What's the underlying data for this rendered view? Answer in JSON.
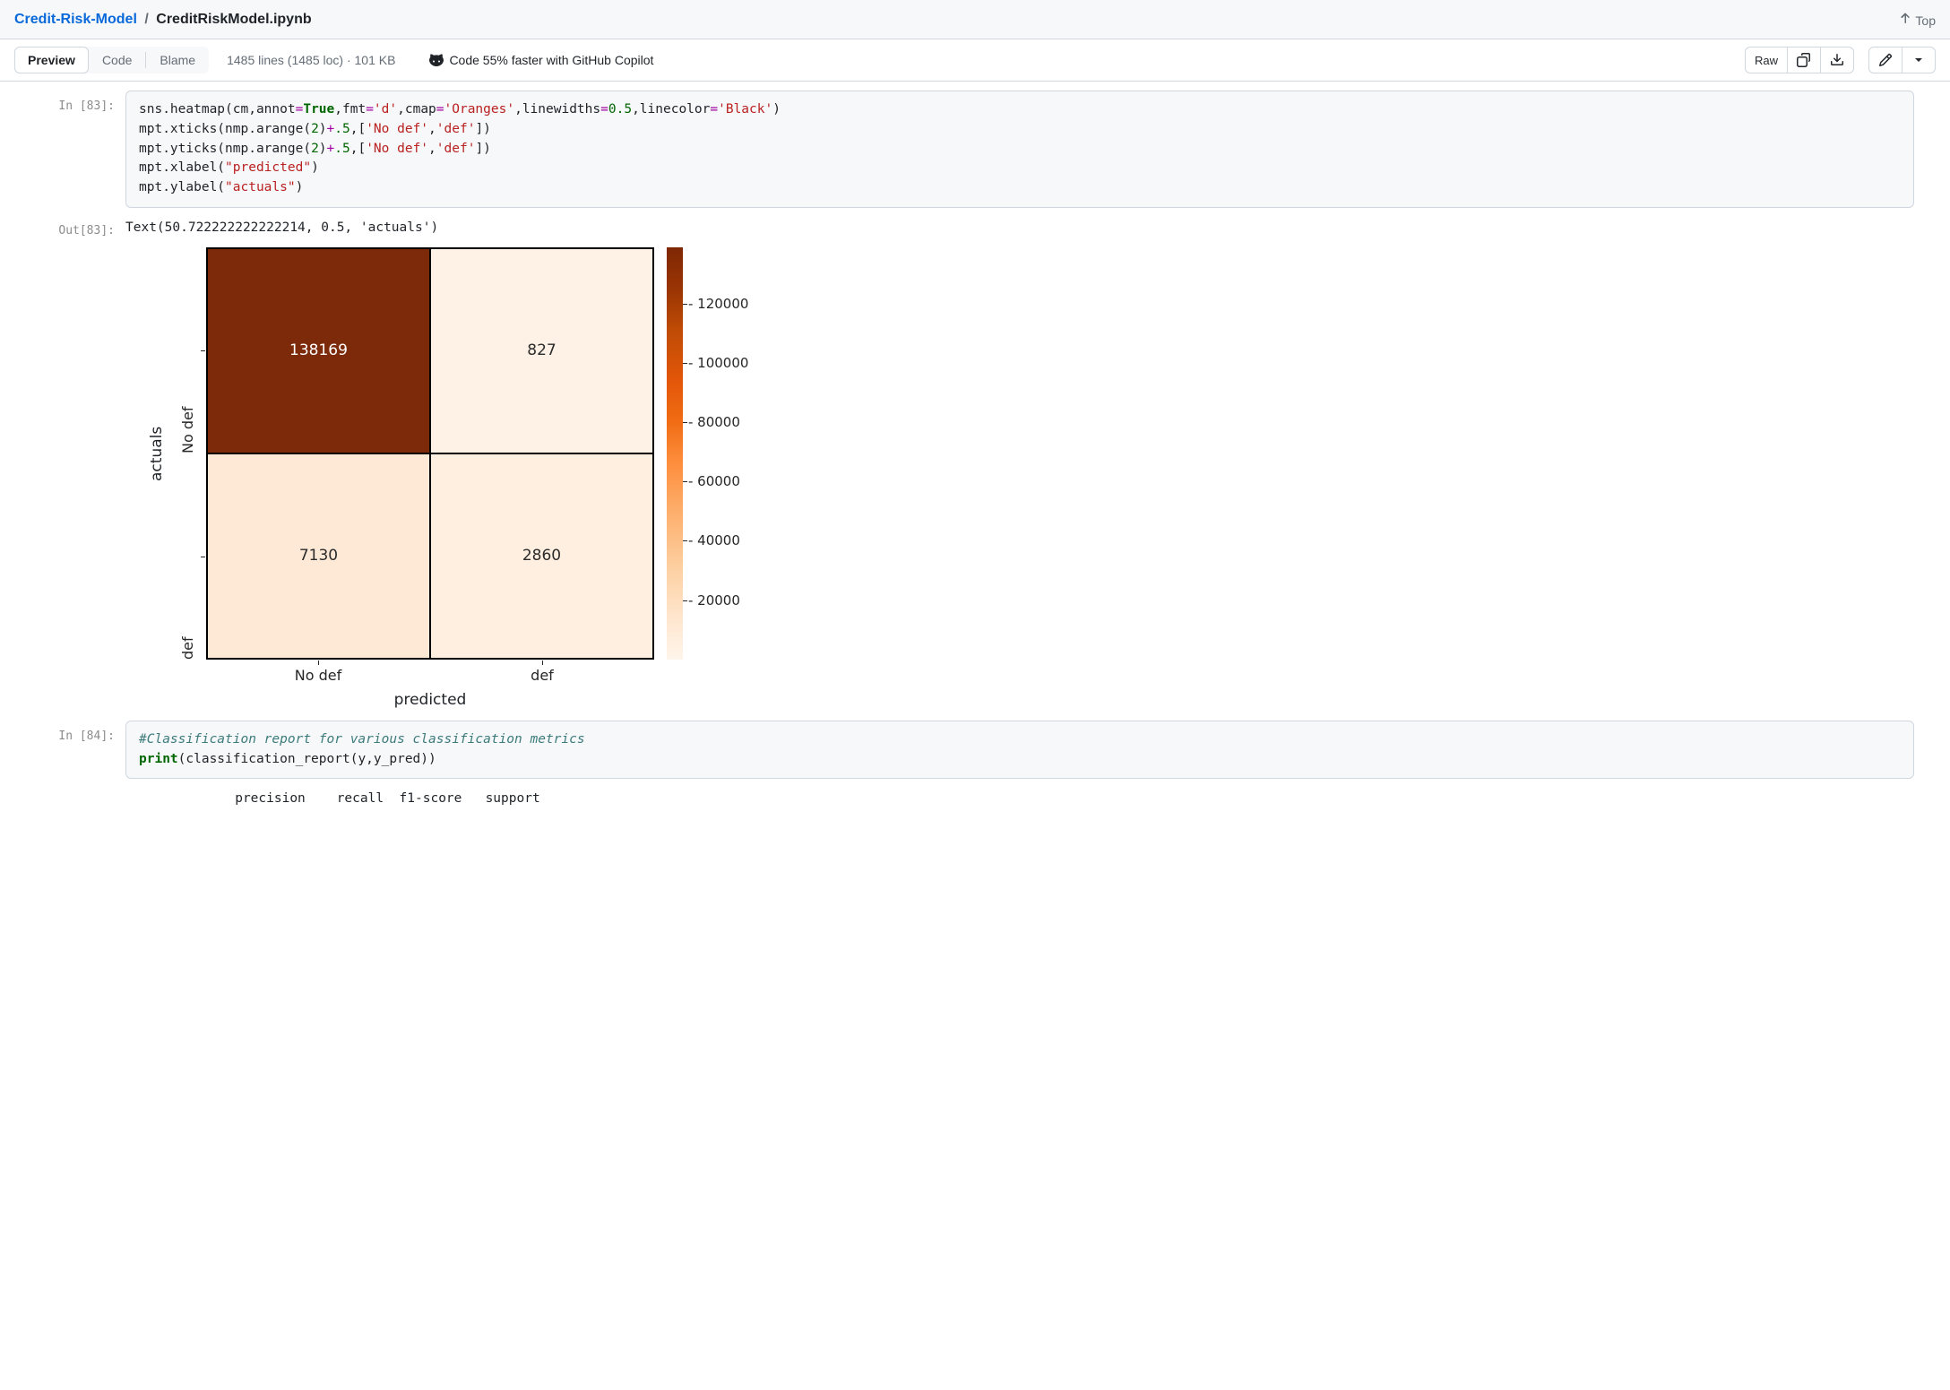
{
  "breadcrumb": {
    "repo": "Credit-Risk-Model",
    "sep": "/",
    "file": "CreditRiskModel.ipynb"
  },
  "top_link": "Top",
  "toolbar": {
    "tabs": {
      "preview": "Preview",
      "code": "Code",
      "blame": "Blame"
    },
    "fileinfo": "1485 lines (1485 loc) · 101 KB",
    "copilot": "Code 55% faster with GitHub Copilot",
    "raw": "Raw"
  },
  "cells": {
    "c83": {
      "in_prompt": "In [83]:",
      "out_prompt": "Out[83]:",
      "code": {
        "l1a": "sns.heatmap(cm,annot",
        "l1b": "=",
        "l1c": "True",
        "l1d": ",fmt",
        "l1e": "=",
        "l1f": "'d'",
        "l1g": ",cmap",
        "l1h": "=",
        "l1i": "'Oranges'",
        "l1j": ",linewidths",
        "l1k": "=",
        "l1l": "0.5",
        "l1m": ",linecolor",
        "l1n": "=",
        "l1o": "'Black'",
        "l1p": ")",
        "l2a": "mpt.xticks(nmp.arange(",
        "l2b": "2",
        "l2c": ")",
        "l2d": "+",
        "l2e": ".5",
        "l2f": ",[",
        "l2g": "'No def'",
        "l2h": ",",
        "l2i": "'def'",
        "l2j": "])",
        "l3a": "mpt.yticks(nmp.arange(",
        "l3b": "2",
        "l3c": ")",
        "l3d": "+",
        "l3e": ".5",
        "l3f": ",[",
        "l3g": "'No def'",
        "l3h": ",",
        "l3i": "'def'",
        "l3j": "])",
        "l4a": "mpt.xlabel(",
        "l4b": "\"predicted\"",
        "l4c": ")",
        "l5a": "mpt.ylabel(",
        "l5b": "\"actuals\"",
        "l5c": ")"
      },
      "output_text": "Text(50.722222222222214, 0.5, 'actuals')"
    },
    "c84": {
      "in_prompt": "In [84]:",
      "code": {
        "comment": "#Classification report for various classification metrics",
        "l1a": "print",
        "l1b": "(classification_report(y,y_pred))"
      },
      "output_header": "              precision    recall  f1-score   support"
    }
  },
  "heatmap": {
    "type": "heatmap",
    "xlabel": "predicted",
    "ylabel": "actuals",
    "xticks": [
      "No def",
      "def"
    ],
    "yticks": [
      "No def",
      "def"
    ],
    "cells": {
      "r0c0": {
        "value": "138169",
        "bg": "#7c2a0a",
        "fg": "#ffffff"
      },
      "r0c1": {
        "value": "827",
        "bg": "#fef2e6",
        "fg": "#2b2b2b"
      },
      "r1c0": {
        "value": "7130",
        "bg": "#fde9d6",
        "fg": "#2b2b2b"
      },
      "r1c1": {
        "value": "2860",
        "bg": "#feefe0",
        "fg": "#2b2b2b"
      }
    },
    "colorbar": {
      "gradient_css": "linear-gradient(to bottom, #7f2704 0%, #993404 10%, #bf4b05 20%, #e25609 32%, #f06b13 42%, #fd8d3c 52%, #fdae6b 64%, #fdd0a2 78%, #fee6ce 90%, #fff5eb 100%)",
      "ticks": [
        {
          "label": "120000",
          "pos_pct": 13.7
        },
        {
          "label": "100000",
          "pos_pct": 28.1
        },
        {
          "label": "80000",
          "pos_pct": 42.5
        },
        {
          "label": "60000",
          "pos_pct": 56.8
        },
        {
          "label": "40000",
          "pos_pct": 71.2
        },
        {
          "label": "20000",
          "pos_pct": 85.6
        }
      ]
    },
    "font_family": "DejaVu Sans",
    "tick_fontsize": 16,
    "label_fontsize": 17,
    "annot_fontsize": 17,
    "linewidth": 0.5,
    "linecolor": "#000000"
  }
}
